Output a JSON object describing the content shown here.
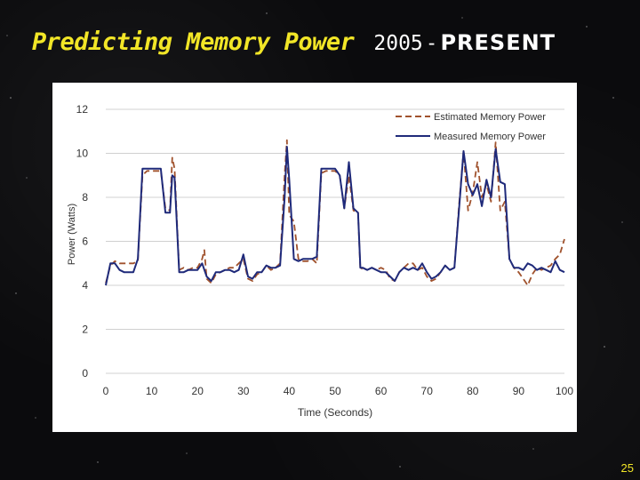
{
  "slide": {
    "title_main": "Predicting Memory Power",
    "title_year": "2005",
    "title_dash": "-",
    "title_present": "PRESENT",
    "page_number": "25",
    "title_color": "#f2e627",
    "background": "#0b0b0d"
  },
  "chart_data": {
    "type": "line",
    "title": "",
    "xlabel": "Time (Seconds)",
    "ylabel": "Power (Watts)",
    "xlim": [
      0,
      100
    ],
    "ylim": [
      0,
      12
    ],
    "x_ticks": [
      0,
      10,
      20,
      30,
      40,
      50,
      60,
      70,
      80,
      90,
      100
    ],
    "y_ticks": [
      0,
      2,
      4,
      6,
      8,
      10,
      12
    ],
    "grid": true,
    "legend_position": "top-right",
    "series": [
      {
        "name": "Estimated Memory Power",
        "color": "#a0522d",
        "style": "dashed",
        "points": [
          [
            0,
            4.1
          ],
          [
            1,
            4.9
          ],
          [
            2,
            5.1
          ],
          [
            3,
            5.0
          ],
          [
            4,
            5.0
          ],
          [
            5,
            5.0
          ],
          [
            6,
            5.0
          ],
          [
            7,
            5.1
          ],
          [
            8,
            9.0
          ],
          [
            9,
            9.2
          ],
          [
            10,
            9.2
          ],
          [
            11,
            9.2
          ],
          [
            12,
            9.2
          ],
          [
            13,
            7.5
          ],
          [
            14,
            7.4
          ],
          [
            14.5,
            9.8
          ],
          [
            15,
            9.3
          ],
          [
            16,
            4.7
          ],
          [
            17,
            4.8
          ],
          [
            18,
            4.7
          ],
          [
            19,
            4.8
          ],
          [
            20,
            4.8
          ],
          [
            21,
            5.2
          ],
          [
            21.5,
            5.6
          ],
          [
            22,
            4.3
          ],
          [
            23,
            4.1
          ],
          [
            24,
            4.5
          ],
          [
            25,
            4.6
          ],
          [
            26,
            4.7
          ],
          [
            27,
            4.8
          ],
          [
            28,
            4.8
          ],
          [
            29,
            5.0
          ],
          [
            30,
            5.2
          ],
          [
            31,
            4.3
          ],
          [
            32,
            4.2
          ],
          [
            33,
            4.5
          ],
          [
            34,
            4.6
          ],
          [
            35,
            4.9
          ],
          [
            36,
            4.7
          ],
          [
            37,
            4.8
          ],
          [
            38,
            5.0
          ],
          [
            39,
            9.0
          ],
          [
            39.5,
            10.6
          ],
          [
            40,
            7.2
          ],
          [
            41,
            6.9
          ],
          [
            42,
            5.2
          ],
          [
            43,
            5.1
          ],
          [
            44,
            5.1
          ],
          [
            45,
            5.2
          ],
          [
            46,
            5.0
          ],
          [
            47,
            9.1
          ],
          [
            48,
            9.2
          ],
          [
            49,
            9.2
          ],
          [
            50,
            9.2
          ],
          [
            51,
            9.0
          ],
          [
            52,
            7.5
          ],
          [
            53,
            9.0
          ],
          [
            54,
            7.4
          ],
          [
            55,
            7.3
          ],
          [
            55.5,
            4.7
          ],
          [
            56,
            4.8
          ],
          [
            57,
            4.7
          ],
          [
            58,
            4.8
          ],
          [
            59,
            4.7
          ],
          [
            60,
            4.8
          ],
          [
            61,
            4.7
          ],
          [
            62,
            4.3
          ],
          [
            63,
            4.2
          ],
          [
            64,
            4.6
          ],
          [
            65,
            4.8
          ],
          [
            66,
            5.0
          ],
          [
            67,
            5.0
          ],
          [
            68,
            4.7
          ],
          [
            69,
            4.8
          ],
          [
            70,
            4.4
          ],
          [
            71,
            4.2
          ],
          [
            72,
            4.3
          ],
          [
            73,
            4.6
          ],
          [
            74,
            4.9
          ],
          [
            75,
            4.7
          ],
          [
            76,
            4.8
          ],
          [
            77,
            7.6
          ],
          [
            78,
            10.1
          ],
          [
            79,
            7.4
          ],
          [
            80,
            8.2
          ],
          [
            81,
            9.6
          ],
          [
            82,
            8.0
          ],
          [
            83,
            8.6
          ],
          [
            84,
            7.8
          ],
          [
            85,
            10.5
          ],
          [
            86,
            7.4
          ],
          [
            87,
            7.8
          ],
          [
            88,
            5.2
          ],
          [
            89,
            4.8
          ],
          [
            90,
            4.6
          ],
          [
            91,
            4.3
          ],
          [
            92,
            4.0
          ],
          [
            93,
            4.5
          ],
          [
            94,
            4.8
          ],
          [
            95,
            4.7
          ],
          [
            96,
            4.8
          ],
          [
            97,
            4.9
          ],
          [
            98,
            5.2
          ],
          [
            99,
            5.4
          ],
          [
            100,
            6.1
          ]
        ]
      },
      {
        "name": "Measured Memory Power",
        "color": "#1f2a7a",
        "style": "solid",
        "points": [
          [
            0,
            4.0
          ],
          [
            1,
            5.0
          ],
          [
            2,
            5.0
          ],
          [
            3,
            4.7
          ],
          [
            4,
            4.6
          ],
          [
            5,
            4.6
          ],
          [
            6,
            4.6
          ],
          [
            7,
            5.2
          ],
          [
            8,
            9.3
          ],
          [
            9,
            9.3
          ],
          [
            10,
            9.3
          ],
          [
            11,
            9.3
          ],
          [
            12,
            9.3
          ],
          [
            13,
            7.3
          ],
          [
            14,
            7.3
          ],
          [
            14.5,
            9.0
          ],
          [
            15,
            8.9
          ],
          [
            16,
            4.6
          ],
          [
            17,
            4.6
          ],
          [
            18,
            4.7
          ],
          [
            19,
            4.7
          ],
          [
            20,
            4.7
          ],
          [
            21,
            5.0
          ],
          [
            22,
            4.4
          ],
          [
            23,
            4.2
          ],
          [
            24,
            4.6
          ],
          [
            25,
            4.6
          ],
          [
            26,
            4.7
          ],
          [
            27,
            4.7
          ],
          [
            28,
            4.6
          ],
          [
            29,
            4.7
          ],
          [
            30,
            5.4
          ],
          [
            31,
            4.4
          ],
          [
            32,
            4.3
          ],
          [
            33,
            4.6
          ],
          [
            34,
            4.6
          ],
          [
            35,
            4.9
          ],
          [
            36,
            4.8
          ],
          [
            37,
            4.8
          ],
          [
            38,
            4.9
          ],
          [
            39,
            8.0
          ],
          [
            39.5,
            10.3
          ],
          [
            40,
            8.8
          ],
          [
            41,
            5.2
          ],
          [
            42,
            5.1
          ],
          [
            43,
            5.2
          ],
          [
            44,
            5.2
          ],
          [
            45,
            5.2
          ],
          [
            46,
            5.3
          ],
          [
            47,
            9.3
          ],
          [
            48,
            9.3
          ],
          [
            49,
            9.3
          ],
          [
            50,
            9.3
          ],
          [
            51,
            9.0
          ],
          [
            52,
            7.5
          ],
          [
            53,
            9.6
          ],
          [
            54,
            7.5
          ],
          [
            55,
            7.3
          ],
          [
            55.5,
            4.8
          ],
          [
            56,
            4.8
          ],
          [
            57,
            4.7
          ],
          [
            58,
            4.8
          ],
          [
            59,
            4.7
          ],
          [
            60,
            4.6
          ],
          [
            61,
            4.6
          ],
          [
            62,
            4.4
          ],
          [
            63,
            4.2
          ],
          [
            64,
            4.6
          ],
          [
            65,
            4.8
          ],
          [
            66,
            4.7
          ],
          [
            67,
            4.8
          ],
          [
            68,
            4.7
          ],
          [
            69,
            5.0
          ],
          [
            70,
            4.6
          ],
          [
            71,
            4.3
          ],
          [
            72,
            4.4
          ],
          [
            73,
            4.6
          ],
          [
            74,
            4.9
          ],
          [
            75,
            4.7
          ],
          [
            76,
            4.8
          ],
          [
            77,
            7.4
          ],
          [
            78,
            10.1
          ],
          [
            79,
            8.6
          ],
          [
            80,
            8.1
          ],
          [
            81,
            8.6
          ],
          [
            82,
            7.6
          ],
          [
            83,
            8.8
          ],
          [
            84,
            8.0
          ],
          [
            85,
            10.2
          ],
          [
            86,
            8.7
          ],
          [
            87,
            8.6
          ],
          [
            88,
            5.2
          ],
          [
            89,
            4.8
          ],
          [
            90,
            4.8
          ],
          [
            91,
            4.7
          ],
          [
            92,
            5.0
          ],
          [
            93,
            4.9
          ],
          [
            94,
            4.7
          ],
          [
            95,
            4.8
          ],
          [
            96,
            4.7
          ],
          [
            97,
            4.6
          ],
          [
            98,
            5.1
          ],
          [
            99,
            4.7
          ],
          [
            100,
            4.6
          ]
        ]
      }
    ]
  }
}
